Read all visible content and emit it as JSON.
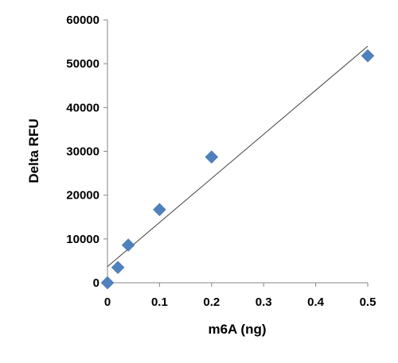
{
  "chart_data": {
    "type": "scatter",
    "xlabel": "m6A (ng)",
    "ylabel": "Delta RFU",
    "xlim": [
      0,
      0.5
    ],
    "ylim": [
      0,
      60000
    ],
    "x_ticks": [
      "0",
      "0.1",
      "0.2",
      "0.3",
      "0.4",
      "0.5"
    ],
    "y_ticks": [
      "0",
      "10000",
      "20000",
      "30000",
      "40000",
      "50000",
      "60000"
    ],
    "series": [
      {
        "points": [
          {
            "x": 0,
            "y": 0
          },
          {
            "x": 0.02,
            "y": 3500
          },
          {
            "x": 0.04,
            "y": 8600
          },
          {
            "x": 0.1,
            "y": 16700
          },
          {
            "x": 0.2,
            "y": 28700
          },
          {
            "x": 0.5,
            "y": 51800
          }
        ],
        "marker": "diamond",
        "color": "#4F81BD"
      }
    ],
    "trendline": {
      "type": "linear",
      "color": "#404040",
      "x_range": [
        0,
        0.5
      ],
      "y_at_start": 3700,
      "y_at_end": 54000
    },
    "grid": false,
    "legend": "none"
  }
}
